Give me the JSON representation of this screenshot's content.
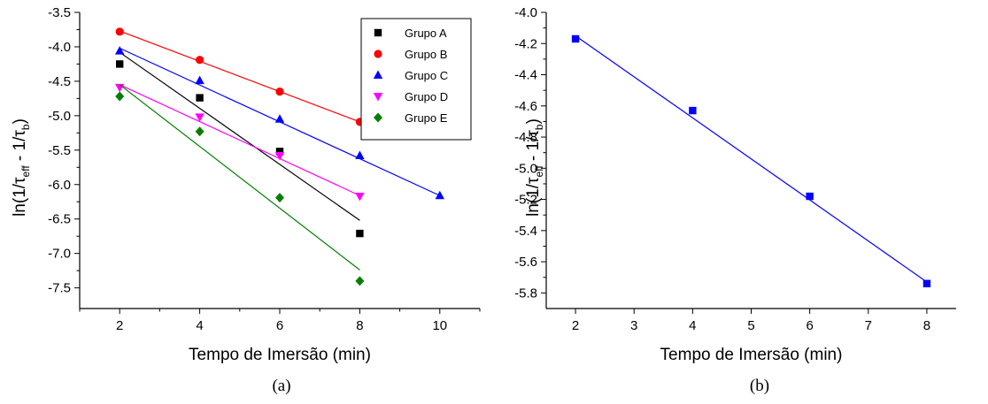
{
  "chart_data": [
    {
      "type": "scatter",
      "panel_label": "(a)",
      "xlabel": "Tempo de Imersão (min)",
      "ylabel": "ln(1/τeff - 1/τb)",
      "ylabel_parts": {
        "main1": "ln(1/τ",
        "sub1": "eff",
        "main2": " - 1/τ",
        "sub2": "b",
        "main3": ")"
      },
      "xlim": [
        1,
        11
      ],
      "ylim": [
        -7.8,
        -3.5
      ],
      "xticks": [
        2,
        4,
        6,
        8,
        10
      ],
      "yticks": [
        -3.5,
        -4.0,
        -4.5,
        -5.0,
        -5.5,
        -6.0,
        -6.5,
        -7.0,
        -7.5
      ],
      "ytick_labels": [
        "-3.5",
        "-4.0",
        "-4.5",
        "-5.0",
        "-5.5",
        "-6.0",
        "-6.5",
        "-7.0",
        "-7.5"
      ],
      "grid": false,
      "legend_position": "top-right",
      "series": [
        {
          "name": "Grupo A",
          "color": "#000000",
          "marker": "square",
          "x": [
            2,
            4,
            6,
            8
          ],
          "y": [
            -4.25,
            -4.74,
            -5.52,
            -6.71
          ],
          "fit": {
            "x": [
              2,
              8
            ],
            "y": [
              -4.08,
              -6.52
            ]
          }
        },
        {
          "name": "Grupo B",
          "color": "#ff0000",
          "marker": "circle",
          "x": [
            2,
            4,
            6,
            8
          ],
          "y": [
            -3.78,
            -4.19,
            -4.65,
            -5.09
          ],
          "fit": {
            "x": [
              2,
              8
            ],
            "y": [
              -3.77,
              -5.09
            ]
          }
        },
        {
          "name": "Grupo C",
          "color": "#0000ff",
          "marker": "triangle-up",
          "x": [
            2,
            4,
            6,
            8,
            10
          ],
          "y": [
            -4.06,
            -4.49,
            -5.05,
            -5.58,
            -6.16
          ],
          "fit": {
            "x": [
              2,
              10
            ],
            "y": [
              -4.02,
              -6.16
            ]
          }
        },
        {
          "name": "Grupo D",
          "color": "#ff00ff",
          "marker": "triangle-down",
          "x": [
            2,
            4,
            6,
            8
          ],
          "y": [
            -4.59,
            -5.02,
            -5.58,
            -6.17
          ],
          "fit": {
            "x": [
              2,
              8
            ],
            "y": [
              -4.55,
              -6.16
            ]
          }
        },
        {
          "name": "Grupo E",
          "color": "#008000",
          "marker": "diamond",
          "x": [
            2,
            4,
            6,
            8
          ],
          "y": [
            -4.72,
            -5.23,
            -6.19,
            -7.4
          ],
          "fit": {
            "x": [
              2,
              8
            ],
            "y": [
              -4.55,
              -7.24
            ]
          }
        }
      ]
    },
    {
      "type": "scatter",
      "panel_label": "(b)",
      "xlabel": "Tempo de Imersão (min)",
      "ylabel": "ln(1/τeff - 1/τb)",
      "ylabel_parts": {
        "main1": "ln(1/τ",
        "sub1": "eff",
        "main2": " - 1/τ",
        "sub2": "b",
        "main3": ")"
      },
      "xlim": [
        1.5,
        8.5
      ],
      "ylim": [
        -5.9,
        -4.0
      ],
      "xticks": [
        2,
        3,
        4,
        5,
        6,
        7,
        8
      ],
      "yticks": [
        -4.0,
        -4.2,
        -4.4,
        -4.6,
        -4.8,
        -5.0,
        -5.2,
        -5.4,
        -5.6,
        -5.8
      ],
      "ytick_labels": [
        "-4.0",
        "-4.2",
        "-4.4",
        "-4.6",
        "-4.8",
        "-5.0",
        "-5.2",
        "-5.4",
        "-5.6",
        "-5.8"
      ],
      "grid": false,
      "series": [
        {
          "color": "#0000ff",
          "marker": "square",
          "x": [
            2,
            4,
            6,
            8
          ],
          "y": [
            -4.17,
            -4.63,
            -5.18,
            -5.74
          ],
          "fit": {
            "x": [
              2,
              8
            ],
            "y": [
              -4.15,
              -5.73
            ]
          }
        }
      ]
    }
  ]
}
